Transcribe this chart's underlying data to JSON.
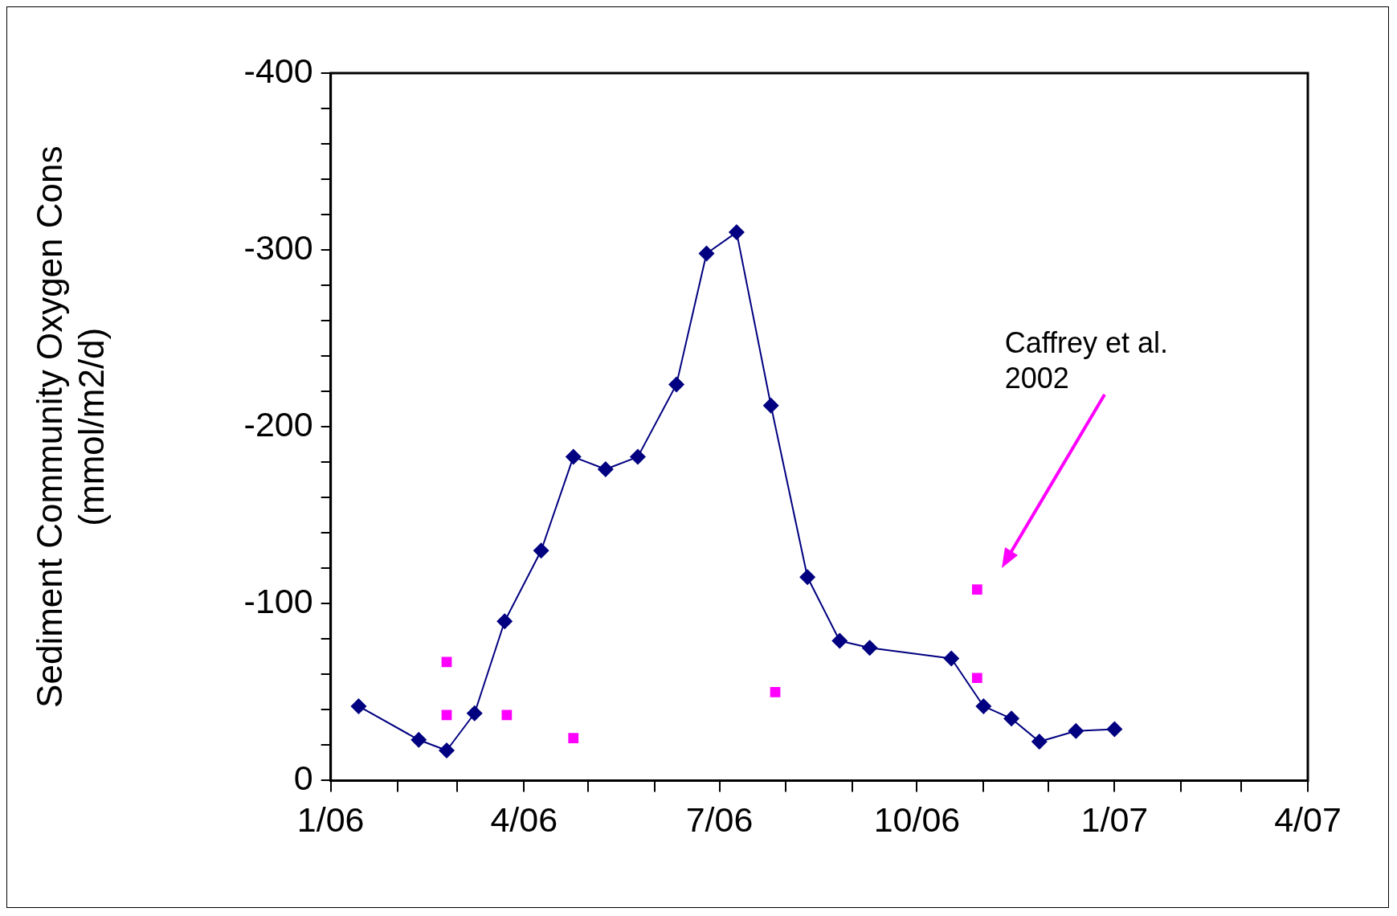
{
  "chart_data": {
    "type": "line",
    "ylabel": "Sediment Community Oxygen Cons\n(mmol/m2/d)",
    "xlim": [
      "2006-01",
      "2007-04"
    ],
    "xticks": [
      {
        "value": "2006-01",
        "label": "1/06"
      },
      {
        "value": "2006-02",
        "label": null
      },
      {
        "value": "2006-03",
        "label": null
      },
      {
        "value": "2006-04",
        "label": "4/06"
      },
      {
        "value": "2006-05",
        "label": null
      },
      {
        "value": "2006-06",
        "label": null
      },
      {
        "value": "2006-07",
        "label": "7/06"
      },
      {
        "value": "2006-08",
        "label": null
      },
      {
        "value": "2006-09",
        "label": null
      },
      {
        "value": "2006-10",
        "label": "10/06"
      },
      {
        "value": "2006-11",
        "label": null
      },
      {
        "value": "2006-12",
        "label": null
      },
      {
        "value": "2007-01",
        "label": "1/07"
      },
      {
        "value": "2007-02",
        "label": null
      },
      {
        "value": "2007-03",
        "label": null
      },
      {
        "value": "2007-04",
        "label": "4/07"
      }
    ],
    "ylim": [
      0,
      -400
    ],
    "yticks": [
      0,
      {
        "value": -20,
        "label": null
      },
      {
        "value": -40,
        "label": null
      },
      {
        "value": -60,
        "label": null
      },
      {
        "value": -80,
        "label": null
      },
      -100,
      {
        "value": -120,
        "label": null
      },
      {
        "value": -140,
        "label": null
      },
      {
        "value": -160,
        "label": null
      },
      {
        "value": -180,
        "label": null
      },
      -200,
      {
        "value": -220,
        "label": null
      },
      {
        "value": -240,
        "label": null
      },
      {
        "value": -260,
        "label": null
      },
      {
        "value": -280,
        "label": null
      },
      -300,
      {
        "value": -320,
        "label": null
      },
      {
        "value": -340,
        "label": null
      },
      {
        "value": -360,
        "label": null
      },
      {
        "value": -380,
        "label": null
      },
      -400
    ],
    "grid": false,
    "legend": false,
    "line_style": "solid",
    "series": [
      {
        "marker": "diamond",
        "color": "#000080",
        "x": [
          "2006-01-14",
          "2006-02-11",
          "2006-02-24",
          "2006-03-09",
          "2006-03-23",
          "2006-04-09",
          "2006-04-24",
          "2006-05-09",
          "2006-05-24",
          "2006-06-11",
          "2006-06-25",
          "2006-07-09",
          "2006-07-25",
          "2006-08-11",
          "2006-08-26",
          "2006-09-09",
          "2006-10-17",
          "2006-11-01",
          "2006-11-14",
          "2006-11-27",
          "2006-12-14",
          "2007-01-01"
        ],
        "values": [
          -42,
          -23,
          -17,
          -38,
          -90,
          -130,
          -183,
          -176,
          -183,
          -224,
          -298,
          -310,
          -212,
          -115,
          -79,
          -75,
          -69,
          -42,
          -35,
          -22,
          -28,
          -29
        ]
      },
      {
        "type": "scatter",
        "marker": "square",
        "color": "#ff00ff",
        "x": [
          "2006-02-24",
          "2006-02-24",
          "2006-03-24",
          "2006-04-24",
          "2006-07-27",
          "2006-10-29",
          "2006-10-29"
        ],
        "values": [
          -67,
          -37,
          -37,
          -24,
          -50,
          -108,
          -58
        ]
      }
    ],
    "annotations": [
      "Caffrey et al.\n2002"
    ]
  }
}
